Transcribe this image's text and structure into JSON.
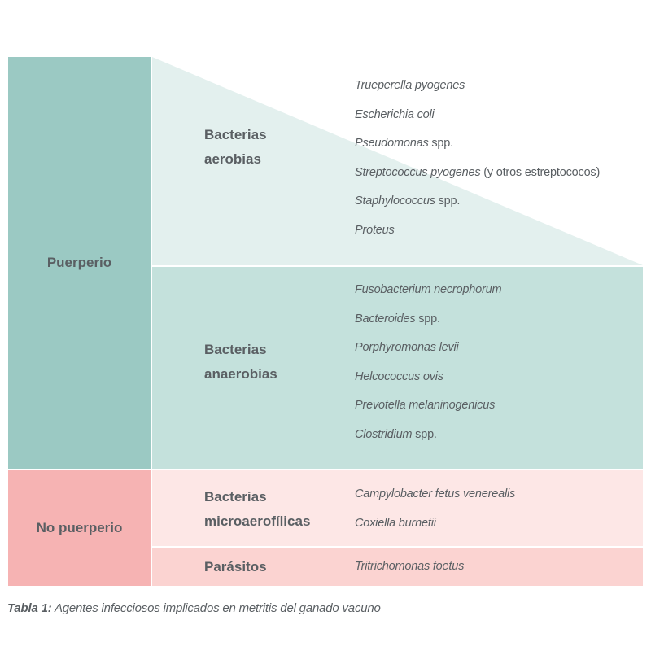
{
  "colors": {
    "puerperio": "#9bc9c3",
    "no_puerperio": "#f6b3b3",
    "aerobias_bg": "#e3f0ee",
    "anaerobias_bg": "#c4e1dc",
    "microaerofilicas_bg": "#fde7e6",
    "parasitos_bg": "#fbd3d1",
    "text": "#5a5f63"
  },
  "groups": {
    "puerperio": "Puerperio",
    "no_puerperio": "No puerperio"
  },
  "categories": {
    "aerobias": {
      "line1": "Bacterias",
      "line2": "aerobias",
      "species": [
        {
          "italic": "Trueperella pyogenes",
          "plain": ""
        },
        {
          "italic": "Escherichia coli",
          "plain": ""
        },
        {
          "italic": "Pseudomonas",
          "plain": " spp."
        },
        {
          "italic": "Streptococcus pyogenes",
          "plain": " (y otros estreptococos)"
        },
        {
          "italic": "Staphylococcus",
          "plain": " spp."
        },
        {
          "italic": "Proteus",
          "plain": ""
        }
      ]
    },
    "anaerobias": {
      "line1": "Bacterias",
      "line2": "anaerobias",
      "species": [
        {
          "italic": "Fusobacterium necrophorum",
          "plain": ""
        },
        {
          "italic": "Bacteroides",
          "plain": " spp."
        },
        {
          "italic": "Porphyromonas levii",
          "plain": ""
        },
        {
          "italic": "Helcococcus ovis",
          "plain": ""
        },
        {
          "italic": "Prevotella melaninogenicus",
          "plain": ""
        },
        {
          "italic": "Clostridium",
          "plain": " spp."
        }
      ]
    },
    "microaerofilicas": {
      "line1": "Bacterias",
      "line2": "microaerofílicas",
      "species": [
        {
          "italic": "Campylobacter fetus venerealis",
          "plain": ""
        },
        {
          "italic": "Coxiella burnetii",
          "plain": ""
        }
      ]
    },
    "parasitos": {
      "line1": "Parásitos",
      "species": [
        {
          "italic": "Tritrichomonas foetus",
          "plain": ""
        }
      ]
    }
  },
  "caption": {
    "label": "Tabla 1:",
    "text": " Agentes infecciosos implicados en metritis del ganado vacuno"
  }
}
